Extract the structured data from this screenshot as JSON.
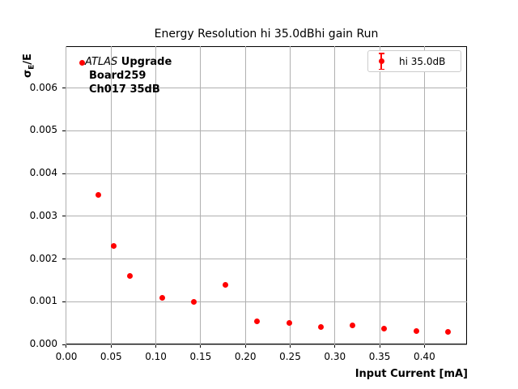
{
  "title": "Energy Resolution hi 35.0dBhi gain Run",
  "annotation": {
    "experiment": "ATLAS",
    "line1_rest": " Upgrade",
    "line2": "Board259",
    "line3": "Ch017 35dB"
  },
  "legend": {
    "label": "hi 35.0dB"
  },
  "axis": {
    "xlabel": "Input Current [mA]",
    "ylabel_sigma": "σ",
    "ylabel_sub": "E",
    "ylabel_rest": "/E"
  },
  "colors": {
    "series": "#ff0000",
    "grid": "#b0b0b0",
    "spine": "#000000",
    "legend_border": "#cccccc",
    "background": "#ffffff"
  },
  "chart_data": {
    "type": "scatter",
    "title": "Energy Resolution hi 35.0dBhi gain Run",
    "xlabel": "Input Current [mA]",
    "ylabel": "σ_E/E",
    "grid": true,
    "legend_position": "upper right",
    "marker": "red filled circle with error bars",
    "xlim": [
      -0.0009,
      0.4476
    ],
    "ylim": [
      0,
      0.00698
    ],
    "xticks": [
      {
        "v": 0.0,
        "label": "0.00"
      },
      {
        "v": 0.05,
        "label": "0.05"
      },
      {
        "v": 0.1,
        "label": "0.10"
      },
      {
        "v": 0.15,
        "label": "0.15"
      },
      {
        "v": 0.2,
        "label": "0.20"
      },
      {
        "v": 0.25,
        "label": "0.25"
      },
      {
        "v": 0.3,
        "label": "0.30"
      },
      {
        "v": 0.35,
        "label": "0.35"
      },
      {
        "v": 0.4,
        "label": "0.40"
      }
    ],
    "yticks": [
      {
        "v": 0.0,
        "label": "0.000"
      },
      {
        "v": 0.001,
        "label": "0.001"
      },
      {
        "v": 0.002,
        "label": "0.002"
      },
      {
        "v": 0.003,
        "label": "0.003"
      },
      {
        "v": 0.004,
        "label": "0.004"
      },
      {
        "v": 0.005,
        "label": "0.005"
      },
      {
        "v": 0.006,
        "label": "0.006"
      }
    ],
    "series": [
      {
        "name": "hi 35.0dB",
        "color": "#ff0000",
        "points": [
          [
            0.018,
            0.0066
          ],
          [
            0.036,
            0.0035
          ],
          [
            0.053,
            0.0023
          ],
          [
            0.071,
            0.0016
          ],
          [
            0.107,
            0.0011
          ],
          [
            0.142,
            0.001
          ],
          [
            0.178,
            0.0014
          ],
          [
            0.213,
            0.00054
          ],
          [
            0.249,
            0.0005
          ],
          [
            0.284,
            0.00041
          ],
          [
            0.32,
            0.00044
          ],
          [
            0.355,
            0.00037
          ],
          [
            0.391,
            0.00032
          ],
          [
            0.426,
            0.00029
          ]
        ]
      }
    ]
  }
}
